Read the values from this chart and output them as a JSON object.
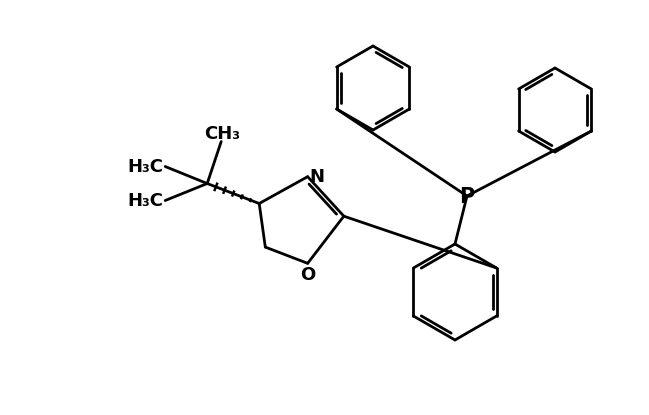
{
  "bg_color": "#ffffff",
  "line_color": "#000000",
  "line_width": 2.0,
  "fig_width": 6.4,
  "fig_height": 4.06,
  "dpi": 100,
  "font_size": 13,
  "font_size_small": 11
}
